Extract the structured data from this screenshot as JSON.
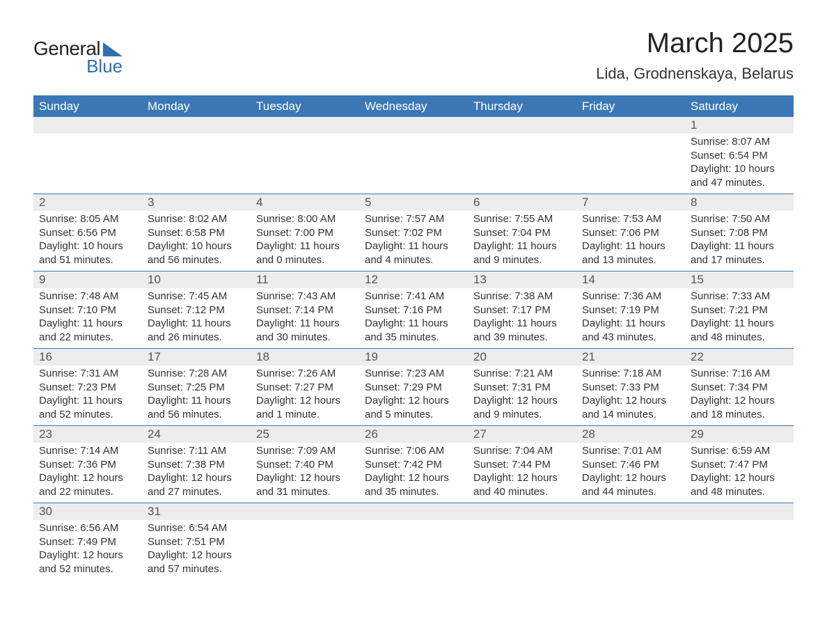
{
  "brand": {
    "name_part1": "General",
    "name_part2": "Blue",
    "accent_color": "#2f6faf"
  },
  "title": "March 2025",
  "location": "Lida, Grodnenskaya, Belarus",
  "header_bg": "#3b78b5",
  "header_fg": "#ffffff",
  "daynum_bg": "#ededed",
  "border_color": "#3b78b5",
  "text_color": "#333333",
  "title_color": "#222222",
  "font_family": "Arial, Helvetica, sans-serif",
  "title_fontsize": 40,
  "location_fontsize": 22,
  "header_fontsize": 17,
  "body_fontsize": 15,
  "days_of_week": [
    "Sunday",
    "Monday",
    "Tuesday",
    "Wednesday",
    "Thursday",
    "Friday",
    "Saturday"
  ],
  "weeks": [
    [
      null,
      null,
      null,
      null,
      null,
      null,
      {
        "n": "1",
        "sunrise": "8:07 AM",
        "sunset": "6:54 PM",
        "daylight": "10 hours and 47 minutes."
      }
    ],
    [
      {
        "n": "2",
        "sunrise": "8:05 AM",
        "sunset": "6:56 PM",
        "daylight": "10 hours and 51 minutes."
      },
      {
        "n": "3",
        "sunrise": "8:02 AM",
        "sunset": "6:58 PM",
        "daylight": "10 hours and 56 minutes."
      },
      {
        "n": "4",
        "sunrise": "8:00 AM",
        "sunset": "7:00 PM",
        "daylight": "11 hours and 0 minutes."
      },
      {
        "n": "5",
        "sunrise": "7:57 AM",
        "sunset": "7:02 PM",
        "daylight": "11 hours and 4 minutes."
      },
      {
        "n": "6",
        "sunrise": "7:55 AM",
        "sunset": "7:04 PM",
        "daylight": "11 hours and 9 minutes."
      },
      {
        "n": "7",
        "sunrise": "7:53 AM",
        "sunset": "7:06 PM",
        "daylight": "11 hours and 13 minutes."
      },
      {
        "n": "8",
        "sunrise": "7:50 AM",
        "sunset": "7:08 PM",
        "daylight": "11 hours and 17 minutes."
      }
    ],
    [
      {
        "n": "9",
        "sunrise": "7:48 AM",
        "sunset": "7:10 PM",
        "daylight": "11 hours and 22 minutes."
      },
      {
        "n": "10",
        "sunrise": "7:45 AM",
        "sunset": "7:12 PM",
        "daylight": "11 hours and 26 minutes."
      },
      {
        "n": "11",
        "sunrise": "7:43 AM",
        "sunset": "7:14 PM",
        "daylight": "11 hours and 30 minutes."
      },
      {
        "n": "12",
        "sunrise": "7:41 AM",
        "sunset": "7:16 PM",
        "daylight": "11 hours and 35 minutes."
      },
      {
        "n": "13",
        "sunrise": "7:38 AM",
        "sunset": "7:17 PM",
        "daylight": "11 hours and 39 minutes."
      },
      {
        "n": "14",
        "sunrise": "7:36 AM",
        "sunset": "7:19 PM",
        "daylight": "11 hours and 43 minutes."
      },
      {
        "n": "15",
        "sunrise": "7:33 AM",
        "sunset": "7:21 PM",
        "daylight": "11 hours and 48 minutes."
      }
    ],
    [
      {
        "n": "16",
        "sunrise": "7:31 AM",
        "sunset": "7:23 PM",
        "daylight": "11 hours and 52 minutes."
      },
      {
        "n": "17",
        "sunrise": "7:28 AM",
        "sunset": "7:25 PM",
        "daylight": "11 hours and 56 minutes."
      },
      {
        "n": "18",
        "sunrise": "7:26 AM",
        "sunset": "7:27 PM",
        "daylight": "12 hours and 1 minute."
      },
      {
        "n": "19",
        "sunrise": "7:23 AM",
        "sunset": "7:29 PM",
        "daylight": "12 hours and 5 minutes."
      },
      {
        "n": "20",
        "sunrise": "7:21 AM",
        "sunset": "7:31 PM",
        "daylight": "12 hours and 9 minutes."
      },
      {
        "n": "21",
        "sunrise": "7:18 AM",
        "sunset": "7:33 PM",
        "daylight": "12 hours and 14 minutes."
      },
      {
        "n": "22",
        "sunrise": "7:16 AM",
        "sunset": "7:34 PM",
        "daylight": "12 hours and 18 minutes."
      }
    ],
    [
      {
        "n": "23",
        "sunrise": "7:14 AM",
        "sunset": "7:36 PM",
        "daylight": "12 hours and 22 minutes."
      },
      {
        "n": "24",
        "sunrise": "7:11 AM",
        "sunset": "7:38 PM",
        "daylight": "12 hours and 27 minutes."
      },
      {
        "n": "25",
        "sunrise": "7:09 AM",
        "sunset": "7:40 PM",
        "daylight": "12 hours and 31 minutes."
      },
      {
        "n": "26",
        "sunrise": "7:06 AM",
        "sunset": "7:42 PM",
        "daylight": "12 hours and 35 minutes."
      },
      {
        "n": "27",
        "sunrise": "7:04 AM",
        "sunset": "7:44 PM",
        "daylight": "12 hours and 40 minutes."
      },
      {
        "n": "28",
        "sunrise": "7:01 AM",
        "sunset": "7:46 PM",
        "daylight": "12 hours and 44 minutes."
      },
      {
        "n": "29",
        "sunrise": "6:59 AM",
        "sunset": "7:47 PM",
        "daylight": "12 hours and 48 minutes."
      }
    ],
    [
      {
        "n": "30",
        "sunrise": "6:56 AM",
        "sunset": "7:49 PM",
        "daylight": "12 hours and 52 minutes."
      },
      {
        "n": "31",
        "sunrise": "6:54 AM",
        "sunset": "7:51 PM",
        "daylight": "12 hours and 57 minutes."
      },
      null,
      null,
      null,
      null,
      null
    ]
  ],
  "labels": {
    "sunrise": "Sunrise: ",
    "sunset": "Sunset: ",
    "daylight": "Daylight: "
  }
}
